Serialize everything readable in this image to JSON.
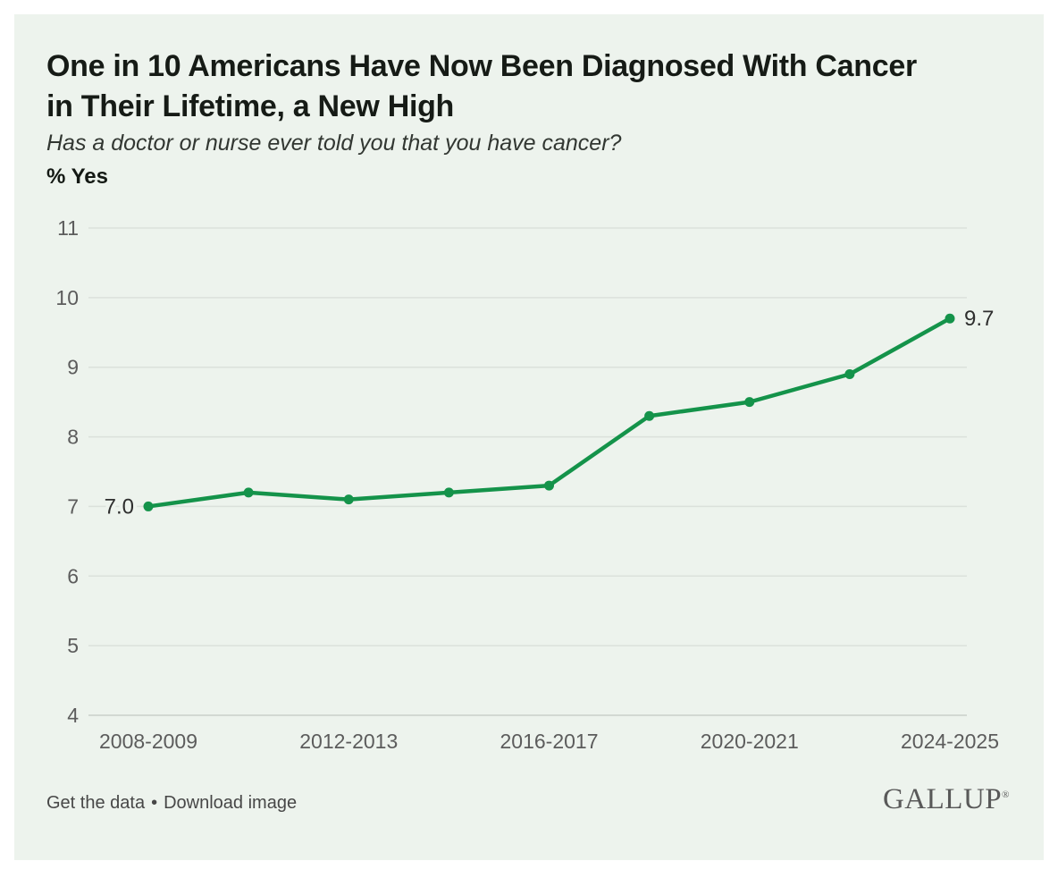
{
  "page": {
    "background": "#ffffff",
    "card_background": "#edf3ed"
  },
  "header": {
    "title_line1": "One in 10 Americans Have Now Been Diagnosed With Cancer",
    "title_line2": "in Their Lifetime, a New High",
    "subtitle": "Has a doctor or nurse ever told you that you have cancer?",
    "unit_label": "% Yes"
  },
  "chart_data": {
    "type": "line",
    "title": "One in 10 Americans Have Now Been Diagnosed With Cancer in Their Lifetime, a New High",
    "subtitle": "Has a doctor or nurse ever told you that you have cancer?",
    "ylabel": "% Yes",
    "xlabel": "",
    "series_name": "% Yes",
    "values": [
      7.0,
      7.2,
      7.1,
      7.2,
      7.3,
      8.3,
      8.5,
      8.9,
      9.7
    ],
    "num_points": 9,
    "x_tick_labels": [
      "2008-2009",
      "2012-2013",
      "2016-2017",
      "2020-2021",
      "2024-2025"
    ],
    "x_tick_indices": [
      0,
      2,
      4,
      6,
      8
    ],
    "yticks": [
      4,
      5,
      6,
      7,
      8,
      9,
      10,
      11
    ],
    "ylim": [
      4,
      11
    ],
    "grid": true,
    "legend": false,
    "point_labels": [
      {
        "index": 0,
        "text": "7.0",
        "side": "left"
      },
      {
        "index": 8,
        "text": "9.7",
        "side": "right"
      }
    ],
    "line_color": "#14934a",
    "grid_color": "#dbe1db",
    "axis_line_color": "#c9cfc9",
    "tick_text_color": "#5c5c5c",
    "point_label_color": "#2e2e2e"
  },
  "footer": {
    "links": [
      {
        "label": "Get the data"
      },
      {
        "label": "Download image"
      }
    ],
    "separator": "•",
    "brand": "GALLUP",
    "brand_mark": "®"
  }
}
